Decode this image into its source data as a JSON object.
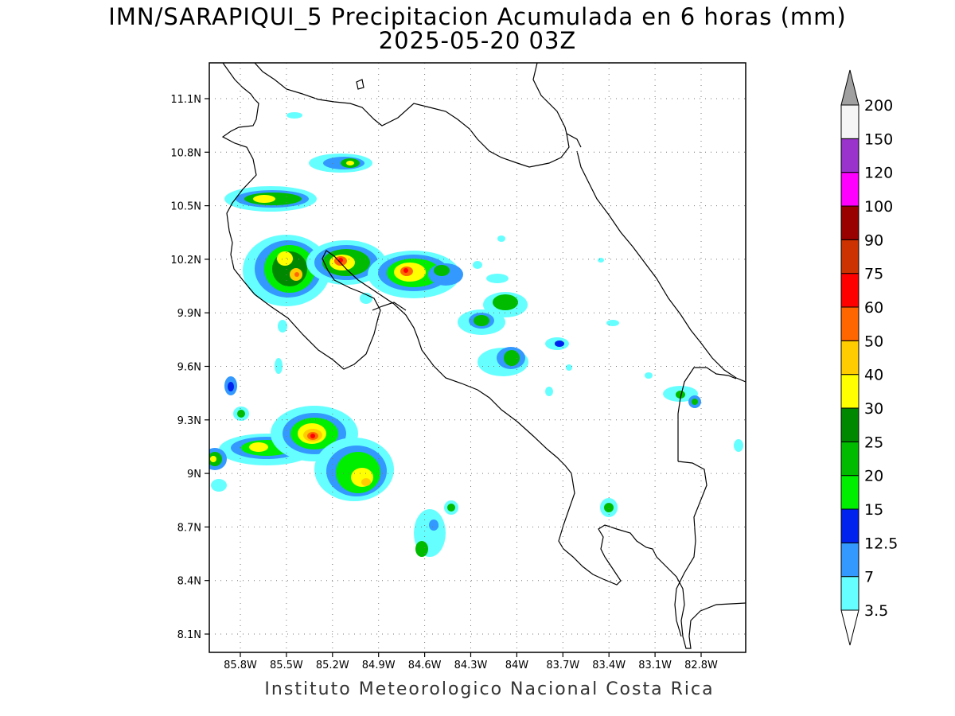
{
  "title": {
    "line1": "IMN/SARAPIQUI_5 Precipitacion Acumulada en 6 horas (mm)",
    "line2": "2025-05-20 03Z"
  },
  "footer": "Instituto Meteorologico Nacional Costa Rica",
  "map": {
    "lat_ticks": [
      "11.1N",
      "10.8N",
      "10.5N",
      "10.2N",
      "9.9N",
      "9.6N",
      "9.3N",
      "9N",
      "8.7N",
      "8.4N",
      "8.1N"
    ],
    "lon_ticks": [
      "85.8W",
      "85.5W",
      "85.2W",
      "84.9W",
      "84.6W",
      "84.3W",
      "84W",
      "83.7W",
      "83.4W",
      "83.1W",
      "82.8W"
    ]
  },
  "legend": {
    "levels": [
      "3.5",
      "7",
      "12.5",
      "15",
      "20",
      "25",
      "30",
      "40",
      "50",
      "60",
      "75",
      "90",
      "100",
      "120",
      "150",
      "200"
    ],
    "colors": [
      "#66ffff",
      "#3399ff",
      "#0022ee",
      "#00ee00",
      "#00bb00",
      "#008800",
      "#ffff00",
      "#ffcc00",
      "#ff6600",
      "#ff0000",
      "#cc3300",
      "#990000",
      "#ff00ff",
      "#9933cc",
      "#f5f5f5"
    ],
    "over_color": "#a0a0a0",
    "under_color": "#ffffff"
  }
}
